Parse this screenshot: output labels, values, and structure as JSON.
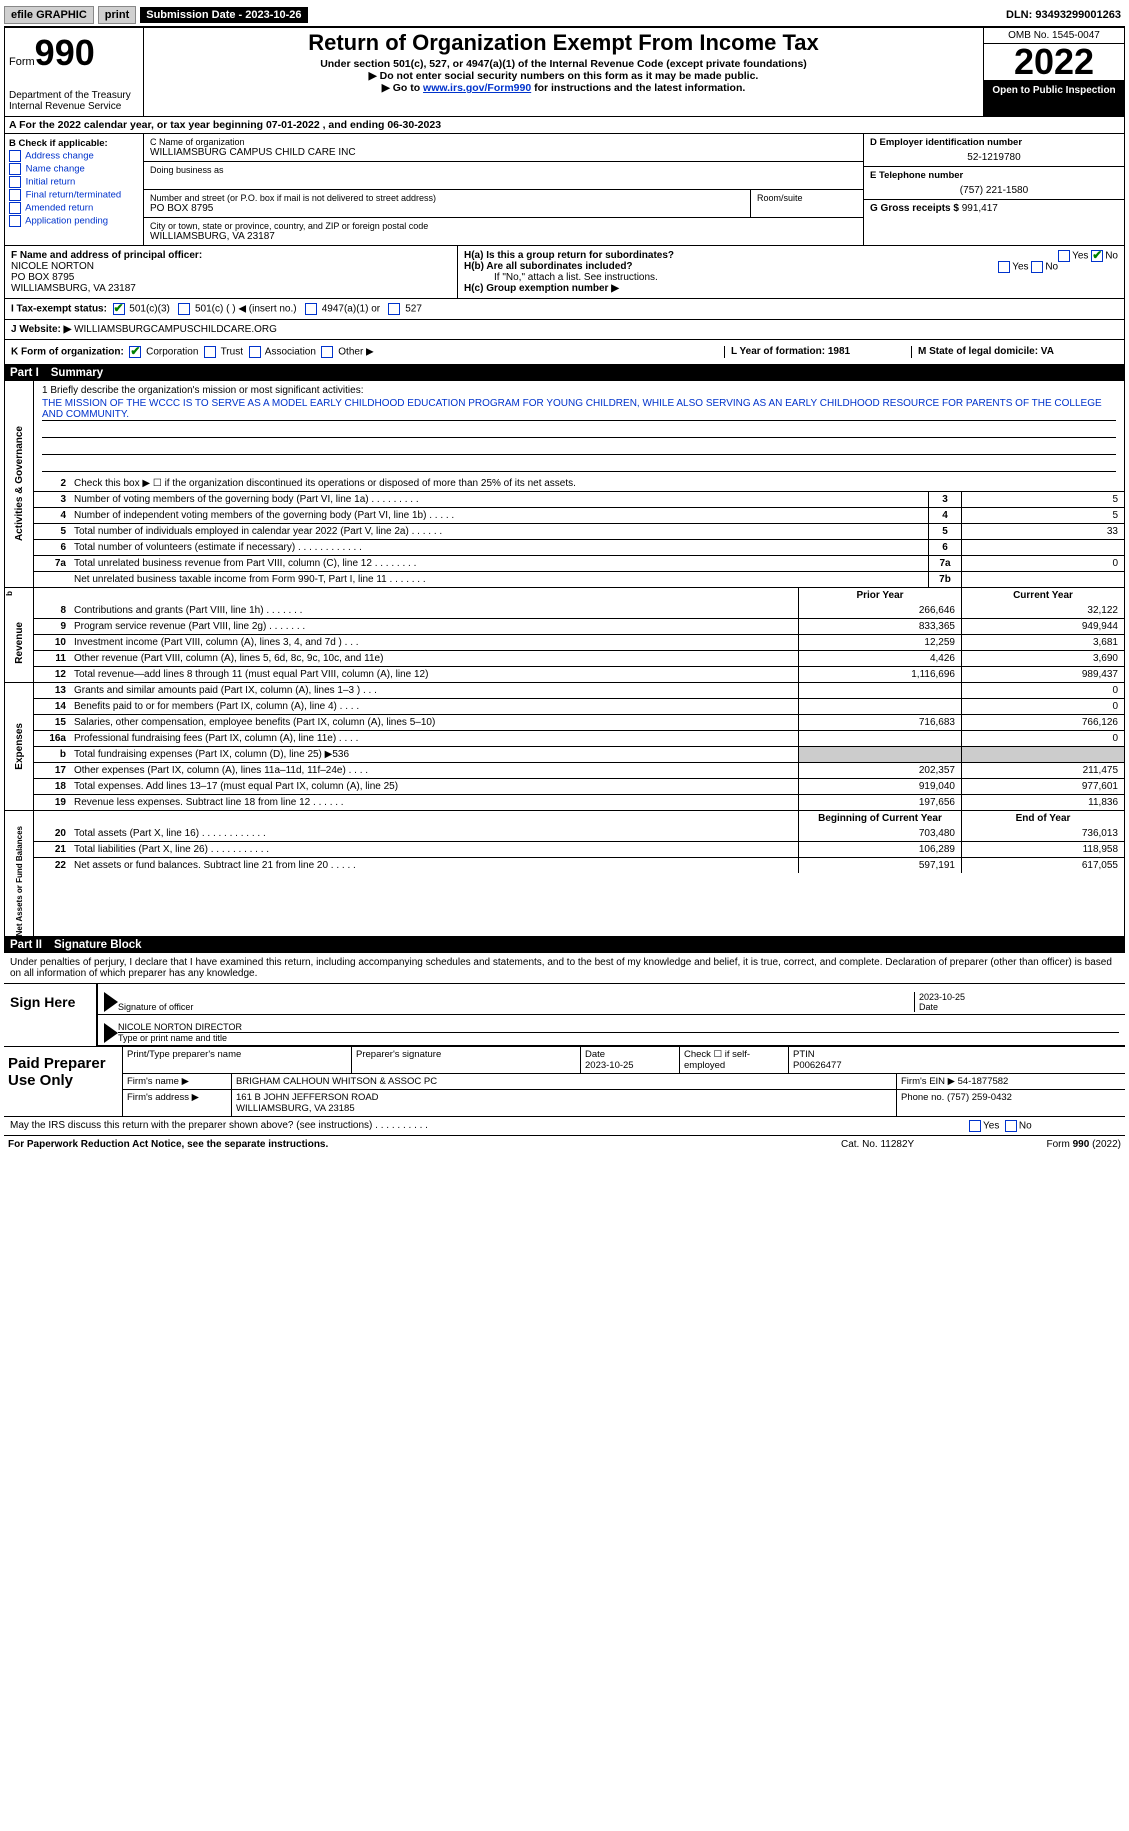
{
  "topbar": {
    "efile": "efile GRAPHIC",
    "print": "print",
    "submission_label": "Submission Date - 2023-10-26",
    "dln": "DLN: 93493299001263"
  },
  "header": {
    "form_label": "Form",
    "form_num": "990",
    "dept": "Department of the Treasury\nInternal Revenue Service",
    "title": "Return of Organization Exempt From Income Tax",
    "sub1": "Under section 501(c), 527, or 4947(a)(1) of the Internal Revenue Code (except private foundations)",
    "sub2": "▶ Do not enter social security numbers on this form as it may be made public.",
    "sub3_pre": "▶ Go to ",
    "sub3_link": "www.irs.gov/Form990",
    "sub3_post": " for instructions and the latest information.",
    "omb": "OMB No. 1545-0047",
    "year": "2022",
    "openpub": "Open to Public Inspection"
  },
  "line_a": "A For the 2022 calendar year, or tax year beginning 07-01-2022    , and ending 06-30-2023",
  "col_b": {
    "title": "B Check if applicable:",
    "opts": [
      "Address change",
      "Name change",
      "Initial return",
      "Final return/terminated",
      "Amended return",
      "Application pending"
    ]
  },
  "col_c": {
    "name_lbl": "C Name of organization",
    "name": "WILLIAMSBURG CAMPUS CHILD CARE INC",
    "dba_lbl": "Doing business as",
    "street_lbl": "Number and street (or P.O. box if mail is not delivered to street address)",
    "street": "PO BOX 8795",
    "room_lbl": "Room/suite",
    "city_lbl": "City or town, state or province, country, and ZIP or foreign postal code",
    "city": "WILLIAMSBURG, VA  23187"
  },
  "col_d": {
    "ein_lbl": "D Employer identification number",
    "ein": "52-1219780",
    "tel_lbl": "E Telephone number",
    "tel": "(757) 221-1580",
    "gross_lbl": "G Gross receipts $",
    "gross": "991,417"
  },
  "col_f": {
    "lbl": "F Name and address of principal officer:",
    "name": "NICOLE NORTON",
    "addr1": "PO BOX 8795",
    "addr2": "WILLIAMSBURG, VA  23187"
  },
  "col_h": {
    "ha": "H(a)  Is this a group return for subordinates?",
    "hb": "H(b)  Are all subordinates included?",
    "hb_note": "If \"No,\" attach a list. See instructions.",
    "hc": "H(c)  Group exemption number ▶"
  },
  "row_i": {
    "label": "I   Tax-exempt status:",
    "opts": [
      "501(c)(3)",
      "501(c) (   ) ◀ (insert no.)",
      "4947(a)(1) or",
      "527"
    ]
  },
  "row_j": {
    "label": "J   Website: ▶ ",
    "site": "WILLIAMSBURGCAMPUSCHILDCARE.ORG"
  },
  "row_k": {
    "k": "K Form of organization:",
    "opts": [
      "Corporation",
      "Trust",
      "Association",
      "Other ▶"
    ],
    "l": "L Year of formation: 1981",
    "m": "M State of legal domicile: VA"
  },
  "part1": {
    "num": "Part I",
    "title": "Summary"
  },
  "mission": {
    "prompt": "1    Briefly describe the organization's mission or most significant activities:",
    "text": "THE MISSION OF THE WCCC IS TO SERVE AS A MODEL EARLY CHILDHOOD EDUCATION PROGRAM FOR YOUNG CHILDREN, WHILE ALSO SERVING AS AN EARLY CHILDHOOD RESOURCE FOR PARENTS OF THE COLLEGE AND COMMUNITY."
  },
  "gov_lines": [
    {
      "n": "2",
      "d": "Check this box ▶ ☐  if the organization discontinued its operations or disposed of more than 25% of its net assets."
    },
    {
      "n": "3",
      "d": "Number of voting members of the governing body (Part VI, line 1a)   .    .    .    .    .    .    .    .    .",
      "box": "3",
      "v": "5"
    },
    {
      "n": "4",
      "d": "Number of independent voting members of the governing body (Part VI, line 1b)   .    .    .    .    .",
      "box": "4",
      "v": "5"
    },
    {
      "n": "5",
      "d": "Total number of individuals employed in calendar year 2022 (Part V, line 2a)   .    .    .    .    .    .",
      "box": "5",
      "v": "33"
    },
    {
      "n": "6",
      "d": "Total number of volunteers (estimate if necessary)    .    .    .    .    .    .    .    .    .    .    .    .",
      "box": "6",
      "v": ""
    },
    {
      "n": "7a",
      "d": "Total unrelated business revenue from Part VIII, column (C), line 12   .    .    .    .    .    .    .    .",
      "box": "7a",
      "v": "0"
    },
    {
      "n": "",
      "d": "Net unrelated business taxable income from Form 990-T, Part I, line 11   .    .    .    .    .    .    .",
      "box": "7b",
      "v": ""
    }
  ],
  "pycy_hdr": {
    "py": "Prior Year",
    "cy": "Current Year"
  },
  "rev_lines": [
    {
      "n": "8",
      "d": "Contributions and grants (Part VIII, line 1h)   .    .    .    .    .    .    .",
      "py": "266,646",
      "cy": "32,122"
    },
    {
      "n": "9",
      "d": "Program service revenue (Part VIII, line 2g)   .    .    .    .    .    .    .",
      "py": "833,365",
      "cy": "949,944"
    },
    {
      "n": "10",
      "d": "Investment income (Part VIII, column (A), lines 3, 4, and 7d )   .    .    .",
      "py": "12,259",
      "cy": "3,681"
    },
    {
      "n": "11",
      "d": "Other revenue (Part VIII, column (A), lines 5, 6d, 8c, 9c, 10c, and 11e)",
      "py": "4,426",
      "cy": "3,690"
    },
    {
      "n": "12",
      "d": "Total revenue—add lines 8 through 11 (must equal Part VIII, column (A), line 12)",
      "py": "1,116,696",
      "cy": "989,437"
    }
  ],
  "exp_lines": [
    {
      "n": "13",
      "d": "Grants and similar amounts paid (Part IX, column (A), lines 1–3 )   .    .    .",
      "py": "",
      "cy": "0"
    },
    {
      "n": "14",
      "d": "Benefits paid to or for members (Part IX, column (A), line 4)   .    .    .    .",
      "py": "",
      "cy": "0"
    },
    {
      "n": "15",
      "d": "Salaries, other compensation, employee benefits (Part IX, column (A), lines 5–10)",
      "py": "716,683",
      "cy": "766,126"
    },
    {
      "n": "16a",
      "d": "Professional fundraising fees (Part IX, column (A), line 11e)   .    .    .    .",
      "py": "",
      "cy": "0"
    },
    {
      "n": "b",
      "d": "Total fundraising expenses (Part IX, column (D), line 25) ▶536",
      "py": "shaded",
      "cy": "shaded"
    },
    {
      "n": "17",
      "d": "Other expenses (Part IX, column (A), lines 11a–11d, 11f–24e)   .    .    .    .",
      "py": "202,357",
      "cy": "211,475"
    },
    {
      "n": "18",
      "d": "Total expenses. Add lines 13–17 (must equal Part IX, column (A), line 25)",
      "py": "919,040",
      "cy": "977,601"
    },
    {
      "n": "19",
      "d": "Revenue less expenses. Subtract line 18 from line 12   .    .    .    .    .    .",
      "py": "197,656",
      "cy": "11,836"
    }
  ],
  "na_hdr": {
    "py": "Beginning of Current Year",
    "cy": "End of Year"
  },
  "na_lines": [
    {
      "n": "20",
      "d": "Total assets (Part X, line 16)   .    .    .    .    .    .    .    .    .    .    .    .",
      "py": "703,480",
      "cy": "736,013"
    },
    {
      "n": "21",
      "d": "Total liabilities (Part X, line 26)   .    .    .    .    .    .    .    .    .    .    .",
      "py": "106,289",
      "cy": "118,958"
    },
    {
      "n": "22",
      "d": "Net assets or fund balances. Subtract line 21 from line 20   .    .    .    .    .",
      "py": "597,191",
      "cy": "617,055"
    }
  ],
  "part2": {
    "num": "Part II",
    "title": "Signature Block"
  },
  "sig": {
    "decl": "Under penalties of perjury, I declare that I have examined this return, including accompanying schedules and statements, and to the best of my knowledge and belief, it is true, correct, and complete. Declaration of preparer (other than officer) is based on all information of which preparer has any knowledge.",
    "here": "Sign Here",
    "sig_lbl": "Signature of officer",
    "date_lbl": "Date",
    "date": "2023-10-25",
    "name": "NICOLE NORTON  DIRECTOR",
    "name_lbl": "Type or print name and title"
  },
  "prep": {
    "here": "Paid Preparer Use Only",
    "r1": {
      "a": "Print/Type preparer's name",
      "b": "Preparer's signature",
      "c": "Date\n2023-10-25",
      "d": "Check ☐ if self-employed",
      "e": "PTIN\nP00626477"
    },
    "r2": {
      "a": "Firm's name    ▶",
      "b": "BRIGHAM CALHOUN WHITSON & ASSOC PC",
      "c": "Firm's EIN ▶ 54-1877582"
    },
    "r3": {
      "a": "Firm's address ▶",
      "b": "161 B JOHN JEFFERSON ROAD\nWILLIAMSBURG, VA  23185",
      "c": "Phone no. (757) 259-0432"
    }
  },
  "discuss": "May the IRS discuss this return with the preparer shown above? (see instructions)   .    .    .    .    .    .    .    .    .    .",
  "footer": {
    "l": "For Paperwork Reduction Act Notice, see the separate instructions.",
    "m": "Cat. No. 11282Y",
    "r": "Form 990 (2022)"
  },
  "side_labels": {
    "gov": "Activities & Governance",
    "rev": "Revenue",
    "exp": "Expenses",
    "na": "Net Assets or Fund Balances"
  }
}
